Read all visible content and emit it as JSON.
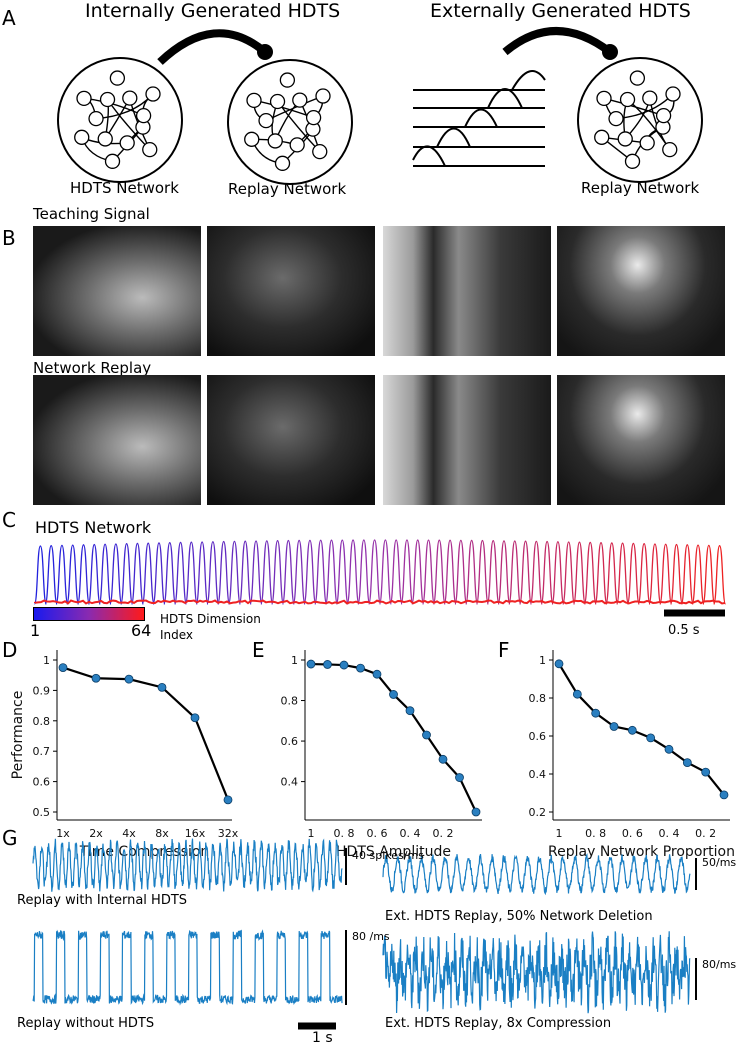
{
  "panel_labels": [
    "A",
    "B",
    "C",
    "D",
    "E",
    "F",
    "G"
  ],
  "panelA": {
    "left_title": "Internally Generated HDTS",
    "right_title": "Externally Generated HDTS",
    "nodes": [
      "HDTS Network",
      "Replay Network",
      "Replay Network"
    ]
  },
  "panelB": {
    "row1_label": "Teaching Signal",
    "row2_label": "Network Replay"
  },
  "panelC": {
    "title": "HDTS Network",
    "colorbar_min": "1",
    "colorbar_max": "64",
    "colorbar_label_line1": "HDTS Dimension",
    "colorbar_label_line2": "Index",
    "scalebar": "0.5 s",
    "colors": {
      "start": "#2222dd",
      "mid": "#9933aa",
      "end": "#ee2222"
    }
  },
  "chart_data": [
    {
      "type": "line",
      "panel": "D",
      "ylabel": "Performance",
      "xlabel": "Time Compression",
      "categories": [
        "1x",
        "2x",
        "4x",
        "8x",
        "16x",
        "32x"
      ],
      "values": [
        0.975,
        0.94,
        0.937,
        0.91,
        0.81,
        0.54
      ],
      "ylim": [
        0.5,
        1.0
      ],
      "yticks": [
        "1",
        "0.9",
        "0.8",
        "0.7",
        "0.6",
        "0.5"
      ]
    },
    {
      "type": "line",
      "panel": "E",
      "xlabel": "HDTS Amplitude",
      "x": [
        1,
        0.9,
        0.8,
        0.7,
        0.6,
        0.5,
        0.4,
        0.3,
        0.2,
        0.1,
        0.0
      ],
      "values": [
        0.98,
        0.978,
        0.975,
        0.96,
        0.93,
        0.83,
        0.75,
        0.63,
        0.51,
        0.42,
        0.25
      ],
      "ylim": [
        0.25,
        1.0
      ],
      "yticks": [
        "1",
        "0.8",
        "0.6",
        "0.4"
      ],
      "xticks": [
        "1",
        "0. 8",
        "0. 6",
        "0. 4",
        "0. 2"
      ]
    },
    {
      "type": "line",
      "panel": "F",
      "xlabel": "Replay Network Proportion",
      "x": [
        1,
        0.9,
        0.8,
        0.7,
        0.6,
        0.5,
        0.4,
        0.3,
        0.2,
        0.1
      ],
      "values": [
        0.98,
        0.82,
        0.72,
        0.65,
        0.63,
        0.59,
        0.53,
        0.46,
        0.41,
        0.29
      ],
      "ylim": [
        0.2,
        1.0
      ],
      "yticks": [
        "1",
        "0.8",
        "0.6",
        "0.4",
        "0.2"
      ],
      "xticks": [
        "1",
        "0. 8",
        "0. 6",
        "0. 4",
        "0. 2"
      ]
    }
  ],
  "panelG": {
    "traces": [
      {
        "caption": "Replay with Internal HDTS",
        "scale": "40 spikes/ms"
      },
      {
        "caption": "Ext. HDTS Replay, 50% Network Deletion",
        "scale": "50/ms"
      },
      {
        "caption": "Replay without HDTS",
        "scale": "80 /ms"
      },
      {
        "caption": "Ext. HDTS Replay, 8x Compression",
        "scale": "80/ms"
      }
    ],
    "time_scale": "1 s",
    "trace_color": "#1a7fc4"
  }
}
